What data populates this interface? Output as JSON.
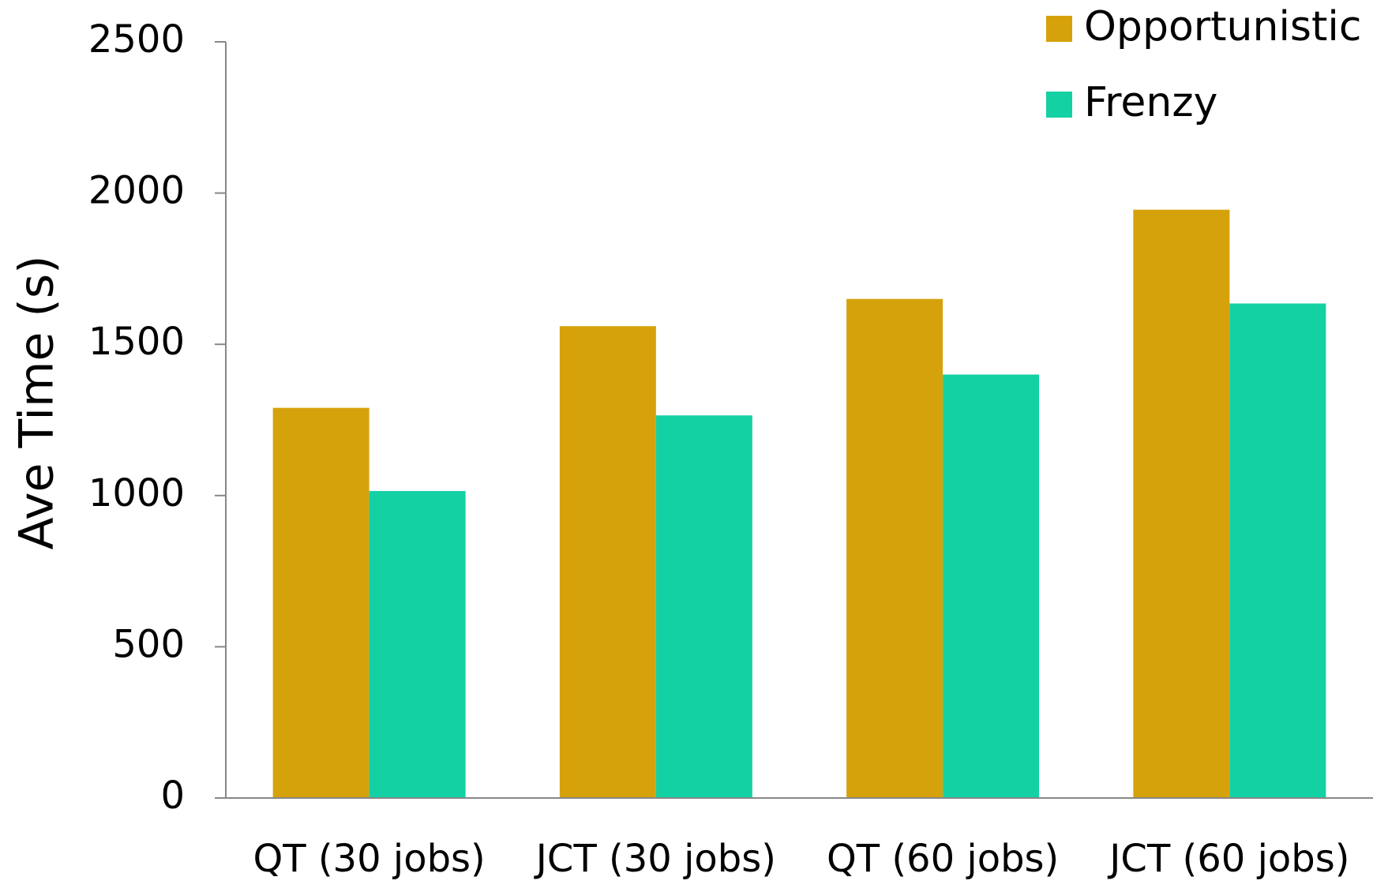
{
  "chart_data": {
    "type": "bar",
    "y_label": "Ave Time (s)",
    "categories": [
      "QT (30 jobs)",
      "JCT (30 jobs)",
      "QT (60 jobs)",
      "JCT (60 jobs)"
    ],
    "series": [
      {
        "name": "Opportunistic",
        "color": "#d6a20c",
        "values": [
          1290,
          1560,
          1650,
          1945
        ]
      },
      {
        "name": "Frenzy",
        "color": "#14d1a4",
        "values": [
          1015,
          1265,
          1400,
          1635
        ]
      }
    ],
    "ylim": [
      0,
      2500
    ],
    "yticks": [
      0,
      500,
      1000,
      1500,
      2000,
      2500
    ],
    "grid": false,
    "legend": "upper right"
  }
}
